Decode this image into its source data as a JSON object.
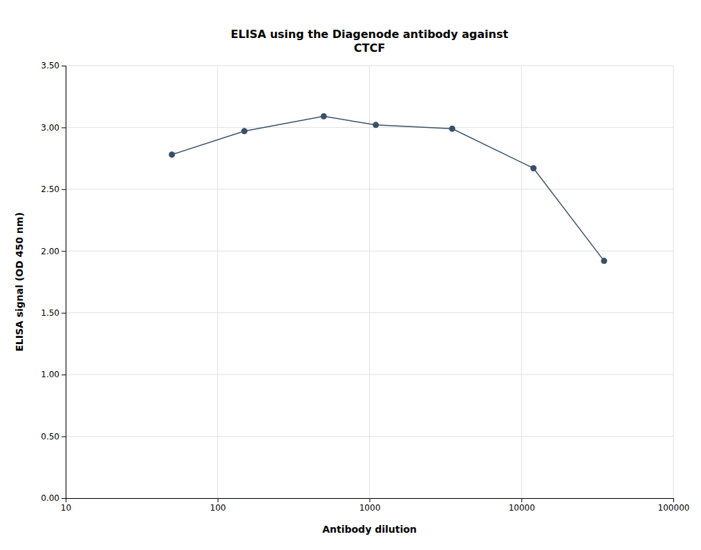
{
  "chart_data": {
    "type": "line",
    "title": "ELISA using the Diagenode antibody against\nCTCF",
    "x_label": "Antibody dilution",
    "y_label": "ELISA signal (OD 450 nm)",
    "x": [
      50,
      150,
      500,
      1100,
      3500,
      12000,
      35000
    ],
    "values": [
      2.78,
      2.97,
      3.09,
      3.02,
      2.99,
      2.67,
      1.92
    ],
    "color": "#3a5068",
    "marker": "circle",
    "log": "x",
    "xlim": [
      10,
      100000
    ],
    "xticks": [
      10,
      100,
      1000,
      10000,
      100000
    ],
    "ylim": [
      0.0,
      3.5
    ],
    "yticks": [
      {
        "value": 0.0,
        "label": "0.00"
      },
      {
        "value": 0.5,
        "label": "0.50"
      },
      {
        "value": 1.0,
        "label": "1.00"
      },
      {
        "value": 1.5,
        "label": "1.50"
      },
      {
        "value": 2.0,
        "label": "2.00"
      },
      {
        "value": 2.5,
        "label": "2.50"
      },
      {
        "value": 3.0,
        "label": "3.00"
      },
      {
        "value": 3.5,
        "label": "3.50"
      }
    ],
    "grid": true
  }
}
